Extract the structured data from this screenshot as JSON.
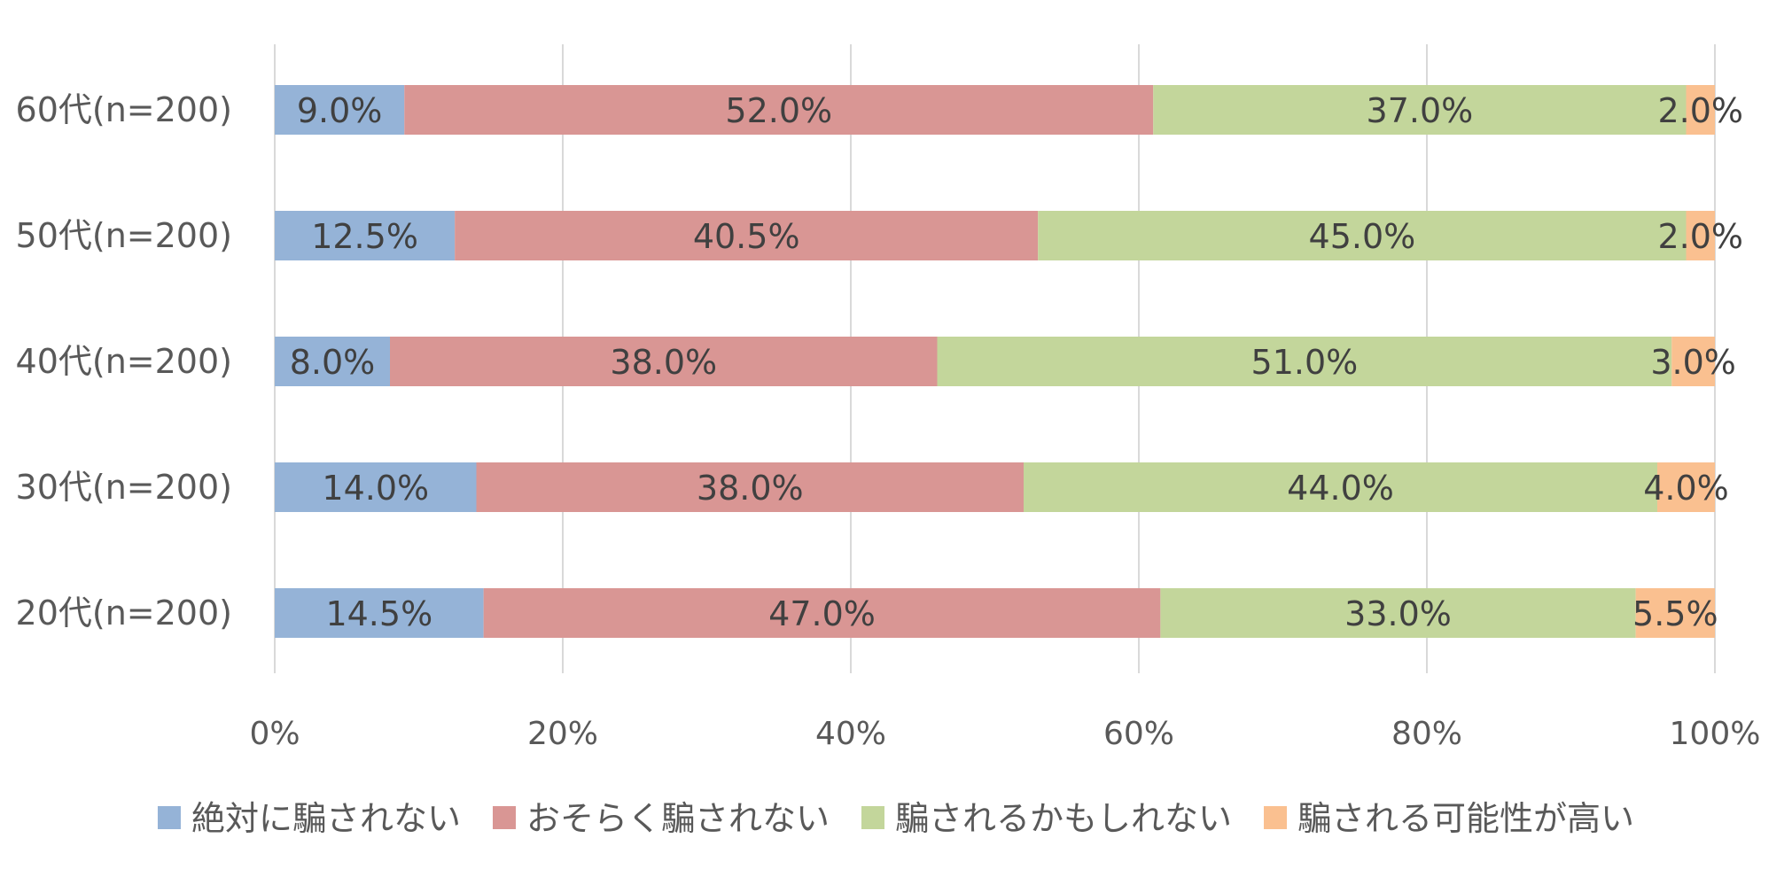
{
  "chart_data": {
    "type": "bar",
    "orientation": "horizontal",
    "stacked": "percent",
    "categories": [
      "60代(n=200)",
      "50代(n=200)",
      "40代(n=200)",
      "30代(n=200)",
      "20代(n=200)"
    ],
    "series": [
      {
        "name": "絶対に騙されない",
        "color": "#95b3d7",
        "values": [
          9.0,
          12.5,
          8.0,
          14.0,
          14.5
        ],
        "labels": [
          "9.0%",
          "12.5%",
          "8.0%",
          "14.0%",
          "14.5%"
        ]
      },
      {
        "name": "おそらく騙されない",
        "color": "#d99694",
        "values": [
          52.0,
          40.5,
          38.0,
          38.0,
          47.0
        ],
        "labels": [
          "52.0%",
          "40.5%",
          "38.0%",
          "38.0%",
          "47.0%"
        ]
      },
      {
        "name": "騙されるかもしれない",
        "color": "#c3d69b",
        "values": [
          37.0,
          45.0,
          51.0,
          44.0,
          33.0
        ],
        "labels": [
          "37.0%",
          "45.0%",
          "51.0%",
          "44.0%",
          "33.0%"
        ]
      },
      {
        "name": "騙される可能性が高い",
        "color": "#fac090",
        "values": [
          2.0,
          2.0,
          3.0,
          4.0,
          5.5
        ],
        "labels": [
          "2.0%",
          "2.0%",
          "3.0%",
          "4.0%",
          "5.5%"
        ]
      }
    ],
    "x_ticks": [
      "0%",
      "20%",
      "40%",
      "60%",
      "80%",
      "100%"
    ],
    "xlim": [
      0,
      100
    ],
    "grid": true,
    "legend": "bottom",
    "title": "",
    "xlabel": "",
    "ylabel": ""
  }
}
